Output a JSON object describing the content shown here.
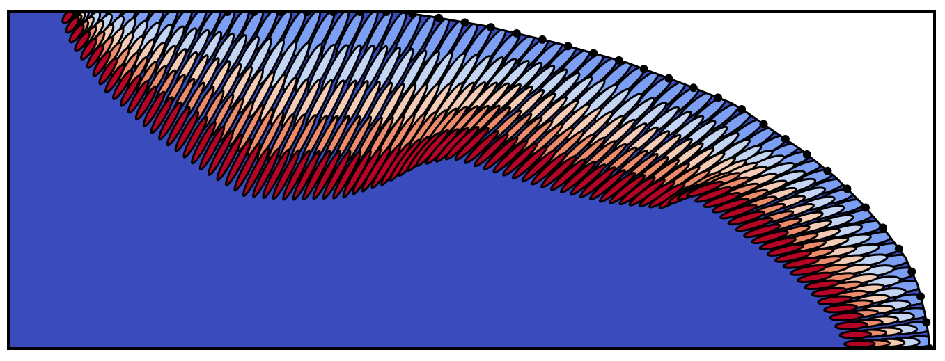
{
  "figure": {
    "colors": {
      "background": "#3a4cbd",
      "band_1": "#7d9ff3",
      "band_2": "#c3d5f3",
      "band_3": "#f3cbb6",
      "band_4": "#ec8a6c",
      "band_5": "#b40426",
      "outline": "#000000",
      "frame": "#000000",
      "outside": "#ffffff"
    },
    "description_free": true
  }
}
